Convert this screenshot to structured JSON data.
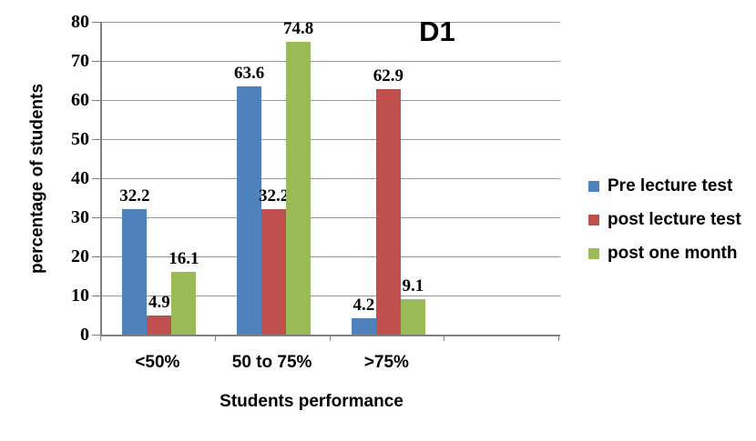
{
  "chart_data": {
    "type": "bar",
    "title": "D1",
    "xlabel": "Students performance",
    "ylabel": "percentage of students",
    "categories": [
      "<50%",
      "50 to 75%",
      ">75%"
    ],
    "series": [
      {
        "name": "Pre lecture test",
        "color": "#4F81BD",
        "values": [
          32.2,
          63.6,
          4.2
        ]
      },
      {
        "name": "post lecture test",
        "color": "#C0504D",
        "values": [
          4.9,
          32.2,
          62.9
        ]
      },
      {
        "name": "post one month",
        "color": "#9BBB59",
        "values": [
          16.1,
          74.8,
          9.1
        ]
      }
    ],
    "ylim": [
      0,
      80
    ],
    "yticks": [
      0,
      10,
      20,
      30,
      40,
      50,
      60,
      70,
      80
    ],
    "grid": true,
    "legend_position": "right",
    "data_labels": true,
    "gridline_color": "#969696",
    "axis_color": "#808080"
  }
}
